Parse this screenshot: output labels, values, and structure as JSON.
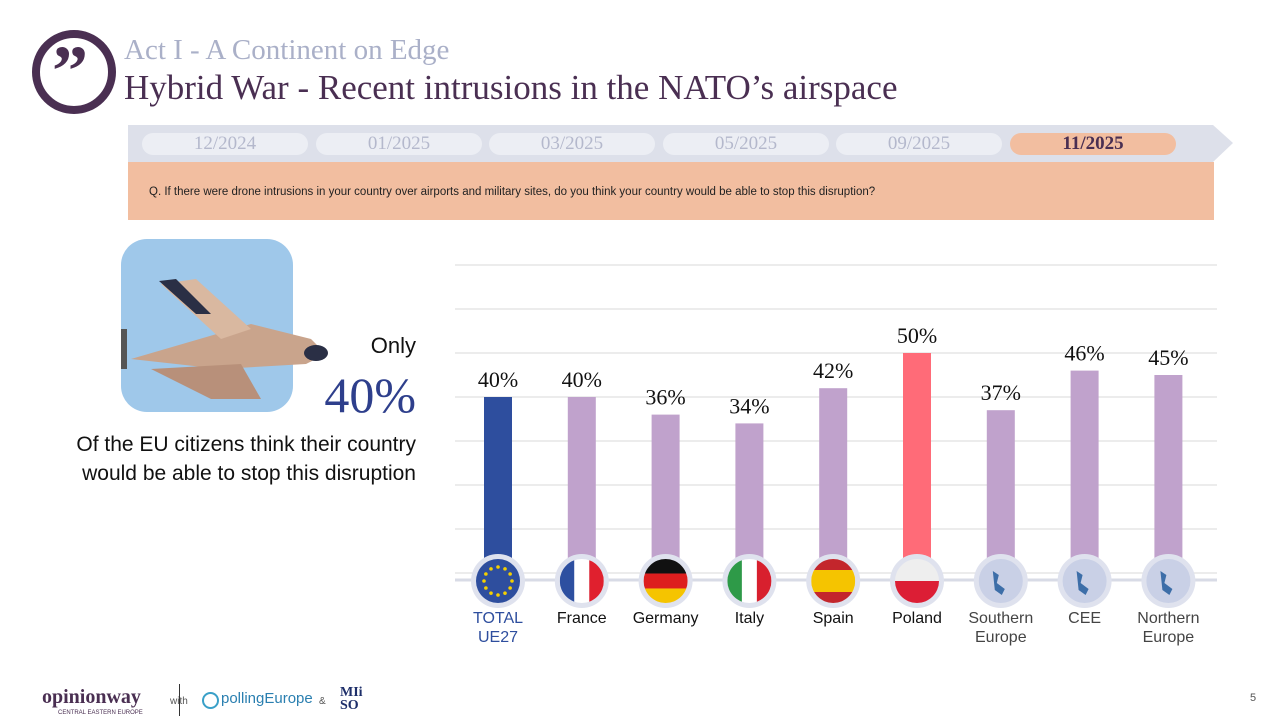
{
  "header": {
    "act": "Act I - A Continent on Edge",
    "title": "Hybrid War - Recent intrusions in the NATO’s airspace",
    "quote_icon": "quote-icon"
  },
  "timeline": {
    "tabs": [
      "12/2024",
      "01/2025",
      "03/2025",
      "05/2025",
      "09/2025",
      "11/2025"
    ],
    "active": "11/2025"
  },
  "question": "Q. If there were drone intrusions in your country over airports and military sites, do you think your country would be able to stop this disruption?",
  "callout": {
    "only": "Only",
    "value": "40%",
    "text": "Of the EU citizens think their country would be able to stop this disruption"
  },
  "chart_data": {
    "type": "bar",
    "categories": [
      "TOTAL UE27",
      "France",
      "Germany",
      "Italy",
      "Spain",
      "Poland",
      "Southern Europe",
      "CEE",
      "Northern Europe"
    ],
    "values": [
      40,
      40,
      36,
      34,
      42,
      50,
      37,
      46,
      45
    ],
    "data_labels": [
      "40%",
      "40%",
      "36%",
      "34%",
      "42%",
      "50%",
      "37%",
      "46%",
      "45%"
    ],
    "ylim": [
      0,
      70
    ],
    "grid": true,
    "colors": {
      "total": "#2e4e9e",
      "default": "#c0a2cc",
      "highlight": "#ff6b78"
    },
    "highlight": "Poland"
  },
  "footer": {
    "logo1": "opinionway",
    "logo1_sub": "CENTRAL EASTERN EUROPE",
    "with": "with",
    "logo2": "pollingEurope",
    "amp": "&",
    "logo3": "MIiSO",
    "page": "5"
  }
}
